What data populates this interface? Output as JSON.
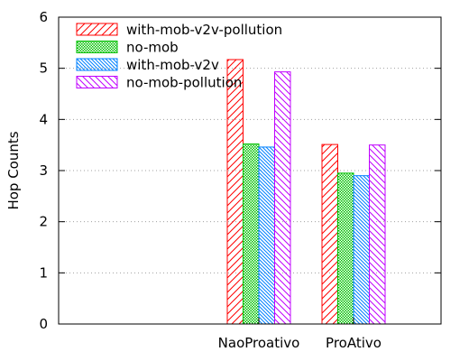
{
  "chart_data": {
    "type": "bar",
    "title": "",
    "xlabel": "",
    "ylabel": "Hop Counts",
    "categories": [
      "NaoProativo",
      "ProAtivo"
    ],
    "ylim": [
      0,
      6
    ],
    "yticks": [
      0,
      1,
      2,
      3,
      4,
      5,
      6
    ],
    "grid": true,
    "legend_position": "top-left",
    "series": [
      {
        "name": "with-mob-v2v-pollution",
        "values": [
          5.17,
          3.51
        ],
        "color": "#ff0000",
        "pattern": "diagonal-up"
      },
      {
        "name": "no-mob",
        "values": [
          3.52,
          2.95
        ],
        "color": "#00c000",
        "pattern": "crosshatch"
      },
      {
        "name": "with-mob-v2v",
        "values": [
          3.46,
          2.9
        ],
        "color": "#0080ff",
        "pattern": "diagonal-down"
      },
      {
        "name": "no-mob-pollution",
        "values": [
          4.93,
          3.5
        ],
        "color": "#c000ff",
        "pattern": "diagonal-down-wide"
      }
    ]
  }
}
